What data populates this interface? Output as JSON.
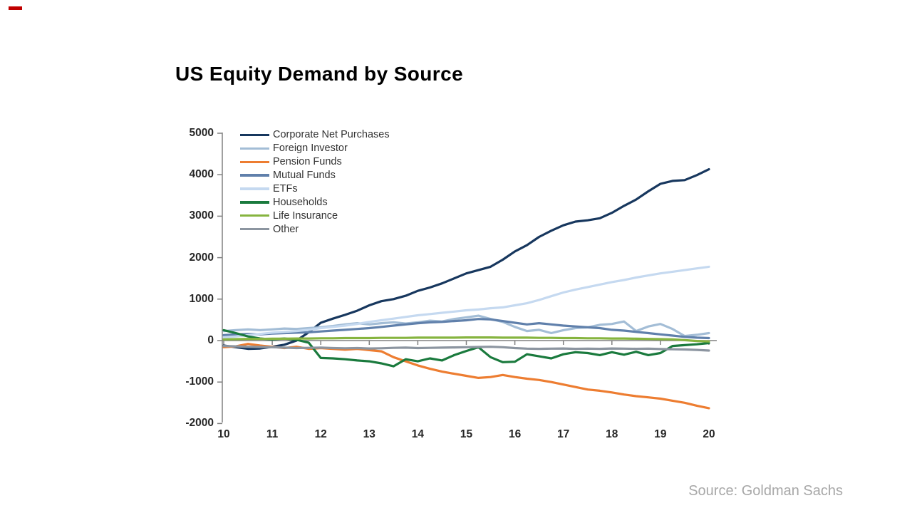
{
  "title": "US Equity Demand by Source",
  "source": "Source: Goldman Sachs",
  "decoration": {
    "top_left_marker_color": "#c00000"
  },
  "chart_data": {
    "type": "line",
    "title": "US Equity Demand by Source",
    "xlabel": "",
    "ylabel": "",
    "grid": false,
    "legend_position": "top-left-inside",
    "axis_color": "#808080",
    "ylim": [
      -2000,
      5000
    ],
    "yticks": [
      5000,
      4000,
      3000,
      2000,
      1000,
      0,
      -1000,
      -2000
    ],
    "xticks": [
      "10",
      "11",
      "12",
      "13",
      "14",
      "15",
      "16",
      "17",
      "18",
      "19",
      "20"
    ],
    "x_start": 10,
    "x_step": 0.25,
    "series": [
      {
        "name": "Corporate Net Purchases",
        "slug": "corporate-net-purchases",
        "color": "#17375e",
        "values": [
          -120,
          -160,
          -200,
          -190,
          -150,
          -100,
          0,
          200,
          430,
          530,
          620,
          720,
          850,
          950,
          1000,
          1080,
          1200,
          1280,
          1380,
          1500,
          1620,
          1700,
          1780,
          1950,
          2150,
          2300,
          2500,
          2650,
          2780,
          2870,
          2900,
          2950,
          3080,
          3250,
          3400,
          3600,
          3780,
          3850,
          3870,
          3990,
          4130
        ]
      },
      {
        "name": "Foreign Investor",
        "slug": "foreign-investor",
        "color": "#a3bdd6",
        "values": [
          230,
          250,
          270,
          250,
          270,
          290,
          280,
          300,
          320,
          350,
          390,
          420,
          390,
          420,
          440,
          410,
          440,
          480,
          460,
          520,
          560,
          600,
          520,
          450,
          330,
          230,
          260,
          180,
          250,
          300,
          320,
          380,
          400,
          460,
          230,
          340,
          400,
          280,
          110,
          140,
          180
        ]
      },
      {
        "name": "Pension Funds",
        "slug": "pension-funds",
        "color": "#ed7d31",
        "values": [
          -160,
          -140,
          -80,
          -120,
          -150,
          -180,
          -150,
          -200,
          -180,
          -200,
          -220,
          -200,
          -230,
          -260,
          -400,
          -500,
          -600,
          -680,
          -750,
          -800,
          -850,
          -900,
          -880,
          -830,
          -880,
          -920,
          -950,
          -1000,
          -1060,
          -1120,
          -1180,
          -1210,
          -1250,
          -1300,
          -1340,
          -1370,
          -1400,
          -1450,
          -1500,
          -1570,
          -1630
        ]
      },
      {
        "name": "Mutual Funds",
        "slug": "mutual-funds",
        "color": "#6080ab",
        "values": [
          130,
          150,
          160,
          150,
          170,
          180,
          190,
          200,
          220,
          240,
          260,
          280,
          300,
          330,
          360,
          390,
          420,
          440,
          450,
          470,
          490,
          520,
          510,
          470,
          430,
          390,
          420,
          390,
          360,
          340,
          320,
          300,
          260,
          240,
          210,
          180,
          150,
          120,
          90,
          70,
          60
        ]
      },
      {
        "name": "ETFs",
        "slug": "etfs",
        "color": "#c5d9f0",
        "values": [
          80,
          100,
          130,
          160,
          190,
          210,
          230,
          260,
          300,
          330,
          360,
          400,
          450,
          490,
          530,
          570,
          610,
          640,
          670,
          700,
          730,
          750,
          780,
          800,
          850,
          900,
          980,
          1070,
          1160,
          1230,
          1290,
          1350,
          1410,
          1460,
          1520,
          1570,
          1620,
          1660,
          1700,
          1740,
          1780
        ]
      },
      {
        "name": "Households",
        "slug": "households",
        "color": "#1a7a3d",
        "values": [
          250,
          180,
          100,
          50,
          30,
          50,
          20,
          -50,
          -420,
          -430,
          -450,
          -480,
          -500,
          -550,
          -620,
          -450,
          -500,
          -430,
          -480,
          -350,
          -250,
          -160,
          -400,
          -520,
          -510,
          -330,
          -380,
          -430,
          -330,
          -280,
          -300,
          -350,
          -280,
          -340,
          -270,
          -350,
          -300,
          -130,
          -110,
          -90,
          -60
        ]
      },
      {
        "name": "Life Insurance",
        "slug": "life-insurance",
        "color": "#86b43f",
        "values": [
          30,
          35,
          40,
          40,
          45,
          45,
          50,
          50,
          55,
          55,
          60,
          60,
          60,
          65,
          65,
          65,
          70,
          70,
          70,
          70,
          75,
          75,
          75,
          70,
          70,
          70,
          65,
          65,
          60,
          60,
          55,
          55,
          50,
          50,
          45,
          40,
          35,
          30,
          10,
          -10,
          -20
        ]
      },
      {
        "name": "Other",
        "slug": "other",
        "color": "#8c95a0",
        "values": [
          -130,
          -140,
          -150,
          -155,
          -160,
          -170,
          -180,
          -175,
          -170,
          -180,
          -185,
          -180,
          -190,
          -185,
          -175,
          -170,
          -180,
          -175,
          -170,
          -165,
          -160,
          -155,
          -150,
          -160,
          -180,
          -195,
          -200,
          -195,
          -190,
          -200,
          -195,
          -200,
          -190,
          -195,
          -200,
          -195,
          -205,
          -210,
          -215,
          -225,
          -240
        ]
      }
    ]
  }
}
